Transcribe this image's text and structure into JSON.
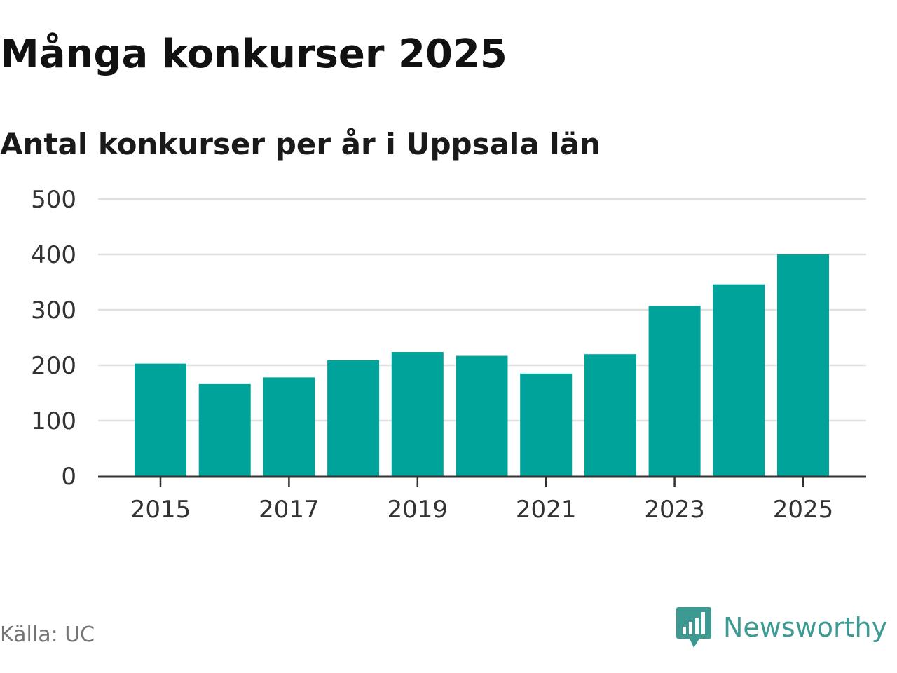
{
  "header": {
    "title": "Många konkurser 2025",
    "subtitle": "Antal konkurser per år i Uppsala län"
  },
  "footer": {
    "source": "Källa: UC",
    "brand_name": "Newsworthy"
  },
  "colors": {
    "bar": "#00a39a",
    "gridline": "#e0e0e0",
    "axis": "#333333",
    "brand": "#3c9a92"
  },
  "chart_data": {
    "type": "bar",
    "title": "Många konkurser 2025",
    "subtitle": "Antal konkurser per år i Uppsala län",
    "xlabel": "",
    "ylabel": "",
    "categories": [
      "2015",
      "2016",
      "2017",
      "2018",
      "2019",
      "2020",
      "2021",
      "2022",
      "2023",
      "2024",
      "2025"
    ],
    "values": [
      203,
      166,
      178,
      209,
      224,
      217,
      185,
      220,
      307,
      346,
      400
    ],
    "ylim": [
      0,
      500
    ],
    "y_ticks": [
      0,
      100,
      200,
      300,
      400,
      500
    ],
    "x_tick_labels": [
      "2015",
      "2017",
      "2019",
      "2021",
      "2023",
      "2025"
    ],
    "grid": true,
    "legend": "none"
  }
}
